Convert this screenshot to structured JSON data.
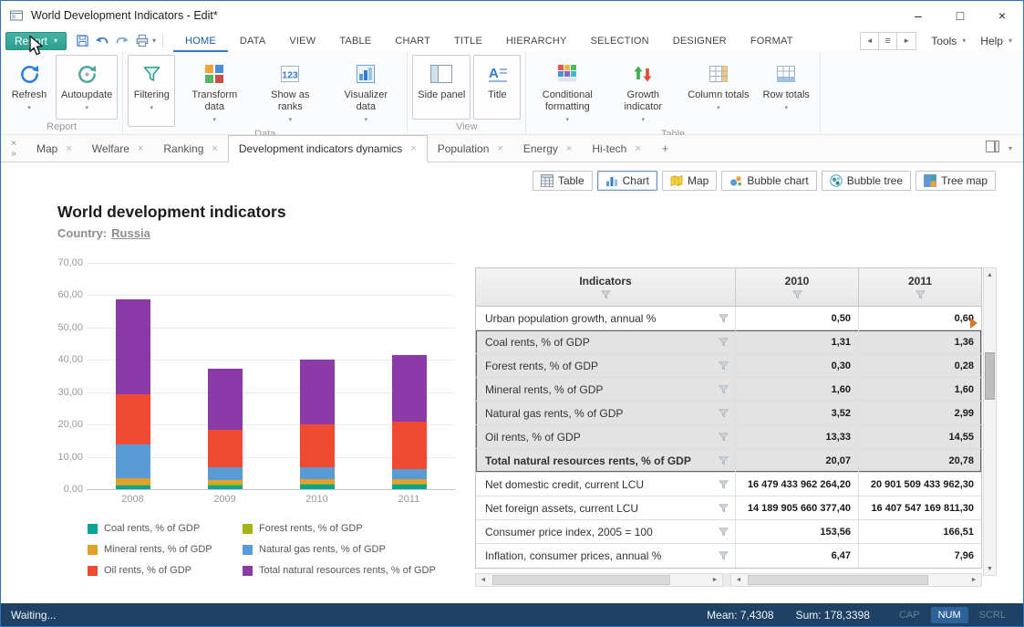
{
  "window": {
    "title": "World Development Indicators - Edit*"
  },
  "menubar": {
    "report_label": "Report",
    "items": [
      {
        "label": "HOME",
        "active": true
      },
      {
        "label": "DATA"
      },
      {
        "label": "VIEW"
      },
      {
        "label": "TABLE"
      },
      {
        "label": "CHART"
      },
      {
        "label": "TITLE"
      },
      {
        "label": "HIERARCHY"
      },
      {
        "label": "SELECTION"
      },
      {
        "label": "DESIGNER"
      },
      {
        "label": "FORMAT"
      }
    ],
    "tools_label": "Tools",
    "help_label": "Help"
  },
  "ribbon": {
    "groups": [
      {
        "label": "Report",
        "buttons": [
          {
            "label": "Refresh",
            "icon": "refresh-icon",
            "dropdown": true
          },
          {
            "label": "Autoupdate",
            "icon": "autoupdate-icon",
            "dropdown": true,
            "boxed": true
          }
        ]
      },
      {
        "label": "Data",
        "buttons": [
          {
            "label": "Filtering",
            "icon": "filter-icon",
            "dropdown": true,
            "boxed": true
          },
          {
            "label": "Transform data",
            "icon": "transform-icon",
            "dropdown": true
          },
          {
            "label": "Show as ranks",
            "icon": "ranks-icon",
            "dropdown": true
          },
          {
            "label": "Visualizer data",
            "icon": "visualizer-icon",
            "dropdown": true
          }
        ]
      },
      {
        "label": "View",
        "buttons": [
          {
            "label": "Side panel",
            "icon": "sidepanel-icon",
            "boxed": true
          },
          {
            "label": "Title",
            "icon": "title-icon",
            "boxed": true
          }
        ]
      },
      {
        "label": "Table",
        "buttons": [
          {
            "label": "Conditional formatting",
            "icon": "condformat-icon",
            "dropdown": true
          },
          {
            "label": "Growth indicator",
            "icon": "growth-icon",
            "dropdown": true
          },
          {
            "label": "Column totals",
            "icon": "coltotals-icon",
            "dropdown": true
          },
          {
            "label": "Row totals",
            "icon": "rowtotals-icon",
            "dropdown": true
          }
        ]
      }
    ]
  },
  "tabstrip": {
    "tabs": [
      {
        "label": "Map"
      },
      {
        "label": "Welfare"
      },
      {
        "label": "Ranking"
      },
      {
        "label": "Development indicators dynamics",
        "active": true
      },
      {
        "label": "Population"
      },
      {
        "label": "Energy"
      },
      {
        "label": "Hi-tech"
      }
    ],
    "add_label": "+"
  },
  "viewbar": {
    "buttons": [
      {
        "label": "Table",
        "icon": "tableview-icon"
      },
      {
        "label": "Chart",
        "icon": "chartview-icon",
        "active": true
      },
      {
        "label": "Map",
        "icon": "mapview-icon"
      },
      {
        "label": "Bubble chart",
        "icon": "bubblechart-icon"
      },
      {
        "label": "Bubble tree",
        "icon": "bubbletree-icon"
      },
      {
        "label": "Tree map",
        "icon": "treemap-icon"
      }
    ]
  },
  "content": {
    "title": "World development indicators",
    "country_label": "Country:",
    "country_value": "Russia"
  },
  "chart_data": {
    "type": "bar",
    "stacked": true,
    "categories": [
      "2008",
      "2009",
      "2010",
      "2011"
    ],
    "series": [
      {
        "name": "Coal rents, % of GDP",
        "color": "#0aa396",
        "values": [
          1.1,
          1.2,
          1.31,
          1.36
        ]
      },
      {
        "name": "Forest rents, % of GDP",
        "color": "#a3b312",
        "values": [
          0.3,
          0.4,
          0.3,
          0.28
        ]
      },
      {
        "name": "Mineral rents, % of GDP",
        "color": "#e2a12c",
        "values": [
          1.9,
          1.3,
          1.6,
          1.6
        ]
      },
      {
        "name": "Natural gas rents, % of GDP",
        "color": "#5b9bd5",
        "values": [
          10.4,
          3.9,
          3.52,
          2.99
        ]
      },
      {
        "name": "Oil rents, % of GDP",
        "color": "#ee4b32",
        "values": [
          15.6,
          11.7,
          13.33,
          14.55
        ]
      },
      {
        "name": "Total natural resources rents, % of GDP",
        "color": "#8a3ba8",
        "values": [
          29.5,
          18.7,
          20.07,
          20.78
        ]
      }
    ],
    "title": "",
    "xlabel": "",
    "ylabel": "",
    "ylim": [
      0,
      70
    ],
    "ytick_step": 10,
    "ytick_labels": [
      "0,00",
      "10,00",
      "20,00",
      "30,00",
      "40,00",
      "50,00",
      "60,00",
      "70,00"
    ],
    "grid": true,
    "legend_position": "bottom"
  },
  "table": {
    "columns": [
      "Indicators",
      "2010",
      "2011"
    ],
    "rows": [
      {
        "indicator": "Urban population growth, annual %",
        "values": [
          "0,50",
          "0,60"
        ]
      },
      {
        "indicator": "Coal rents, % of GDP",
        "values": [
          "1,31",
          "1,36"
        ],
        "selected": true
      },
      {
        "indicator": "Forest rents, % of GDP",
        "values": [
          "0,30",
          "0,28"
        ],
        "selected": true
      },
      {
        "indicator": "Mineral rents, % of GDP",
        "values": [
          "1,60",
          "1,60"
        ],
        "selected": true
      },
      {
        "indicator": "Natural gas rents, % of GDP",
        "values": [
          "3,52",
          "2,99"
        ],
        "selected": true
      },
      {
        "indicator": "Oil rents, % of GDP",
        "values": [
          "13,33",
          "14,55"
        ],
        "selected": true
      },
      {
        "indicator": "Total natural resources rents, % of GDP",
        "values": [
          "20,07",
          "20,78"
        ],
        "selected": true,
        "bold": true
      },
      {
        "indicator": "Net domestic credit, current LCU",
        "values": [
          "16 479 433 962 264,20",
          "20 901 509 433 962,30"
        ]
      },
      {
        "indicator": "Net foreign assets, current LCU",
        "values": [
          "14 189 905 660 377,40",
          "16 407 547 169 811,30"
        ]
      },
      {
        "indicator": "Consumer price index, 2005 = 100",
        "values": [
          "153,56",
          "166,51"
        ]
      },
      {
        "indicator": "Inflation, consumer prices, annual %",
        "values": [
          "6,47",
          "7,96"
        ]
      }
    ]
  },
  "statusbar": {
    "status": "Waiting...",
    "mean": "Mean: 7,4308",
    "sum": "Sum: 178,3398",
    "caps": "CAP",
    "num": "NUM",
    "scroll": "SCRL"
  }
}
